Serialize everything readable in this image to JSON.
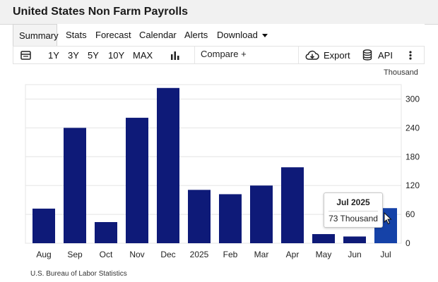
{
  "page": {
    "title": "United States Non Farm Payrolls"
  },
  "nav": {
    "tabs": [
      {
        "label": "Summary",
        "active": true
      },
      {
        "label": "Stats"
      },
      {
        "label": "Forecast"
      },
      {
        "label": "Calendar"
      },
      {
        "label": "Alerts"
      },
      {
        "label": "Download"
      }
    ]
  },
  "toolbar": {
    "calendar_icon": "calendar-icon",
    "ranges": [
      "1Y",
      "3Y",
      "5Y",
      "10Y",
      "MAX"
    ],
    "chart_type_icon": "bar-chart-icon",
    "compare_label": "Compare +",
    "export_label": "Export",
    "export_icon": "cloud-download-icon",
    "api_label": "API",
    "api_icon": "database-icon",
    "more_icon": "more-vertical-icon"
  },
  "chart_data": {
    "type": "bar",
    "unit": "Thousand",
    "categories": [
      "Aug",
      "Sep",
      "Oct",
      "Nov",
      "Dec",
      "2025",
      "Feb",
      "Mar",
      "Apr",
      "May",
      "Jun",
      "Jul"
    ],
    "values": [
      72,
      240,
      44,
      261,
      323,
      111,
      102,
      120,
      158,
      19,
      14,
      73
    ],
    "ylim": [
      0,
      330
    ],
    "yticks": [
      0,
      60,
      120,
      180,
      240,
      300
    ],
    "highlighted_index": 11,
    "colors": {
      "bar": "#0e1a78",
      "bar_highlight": "#1542a8",
      "grid": "#e4e4e4"
    },
    "tooltip": {
      "title": "Jul 2025",
      "value_label": "73 Thousand"
    },
    "source": "U.S. Bureau of Labor Statistics"
  }
}
